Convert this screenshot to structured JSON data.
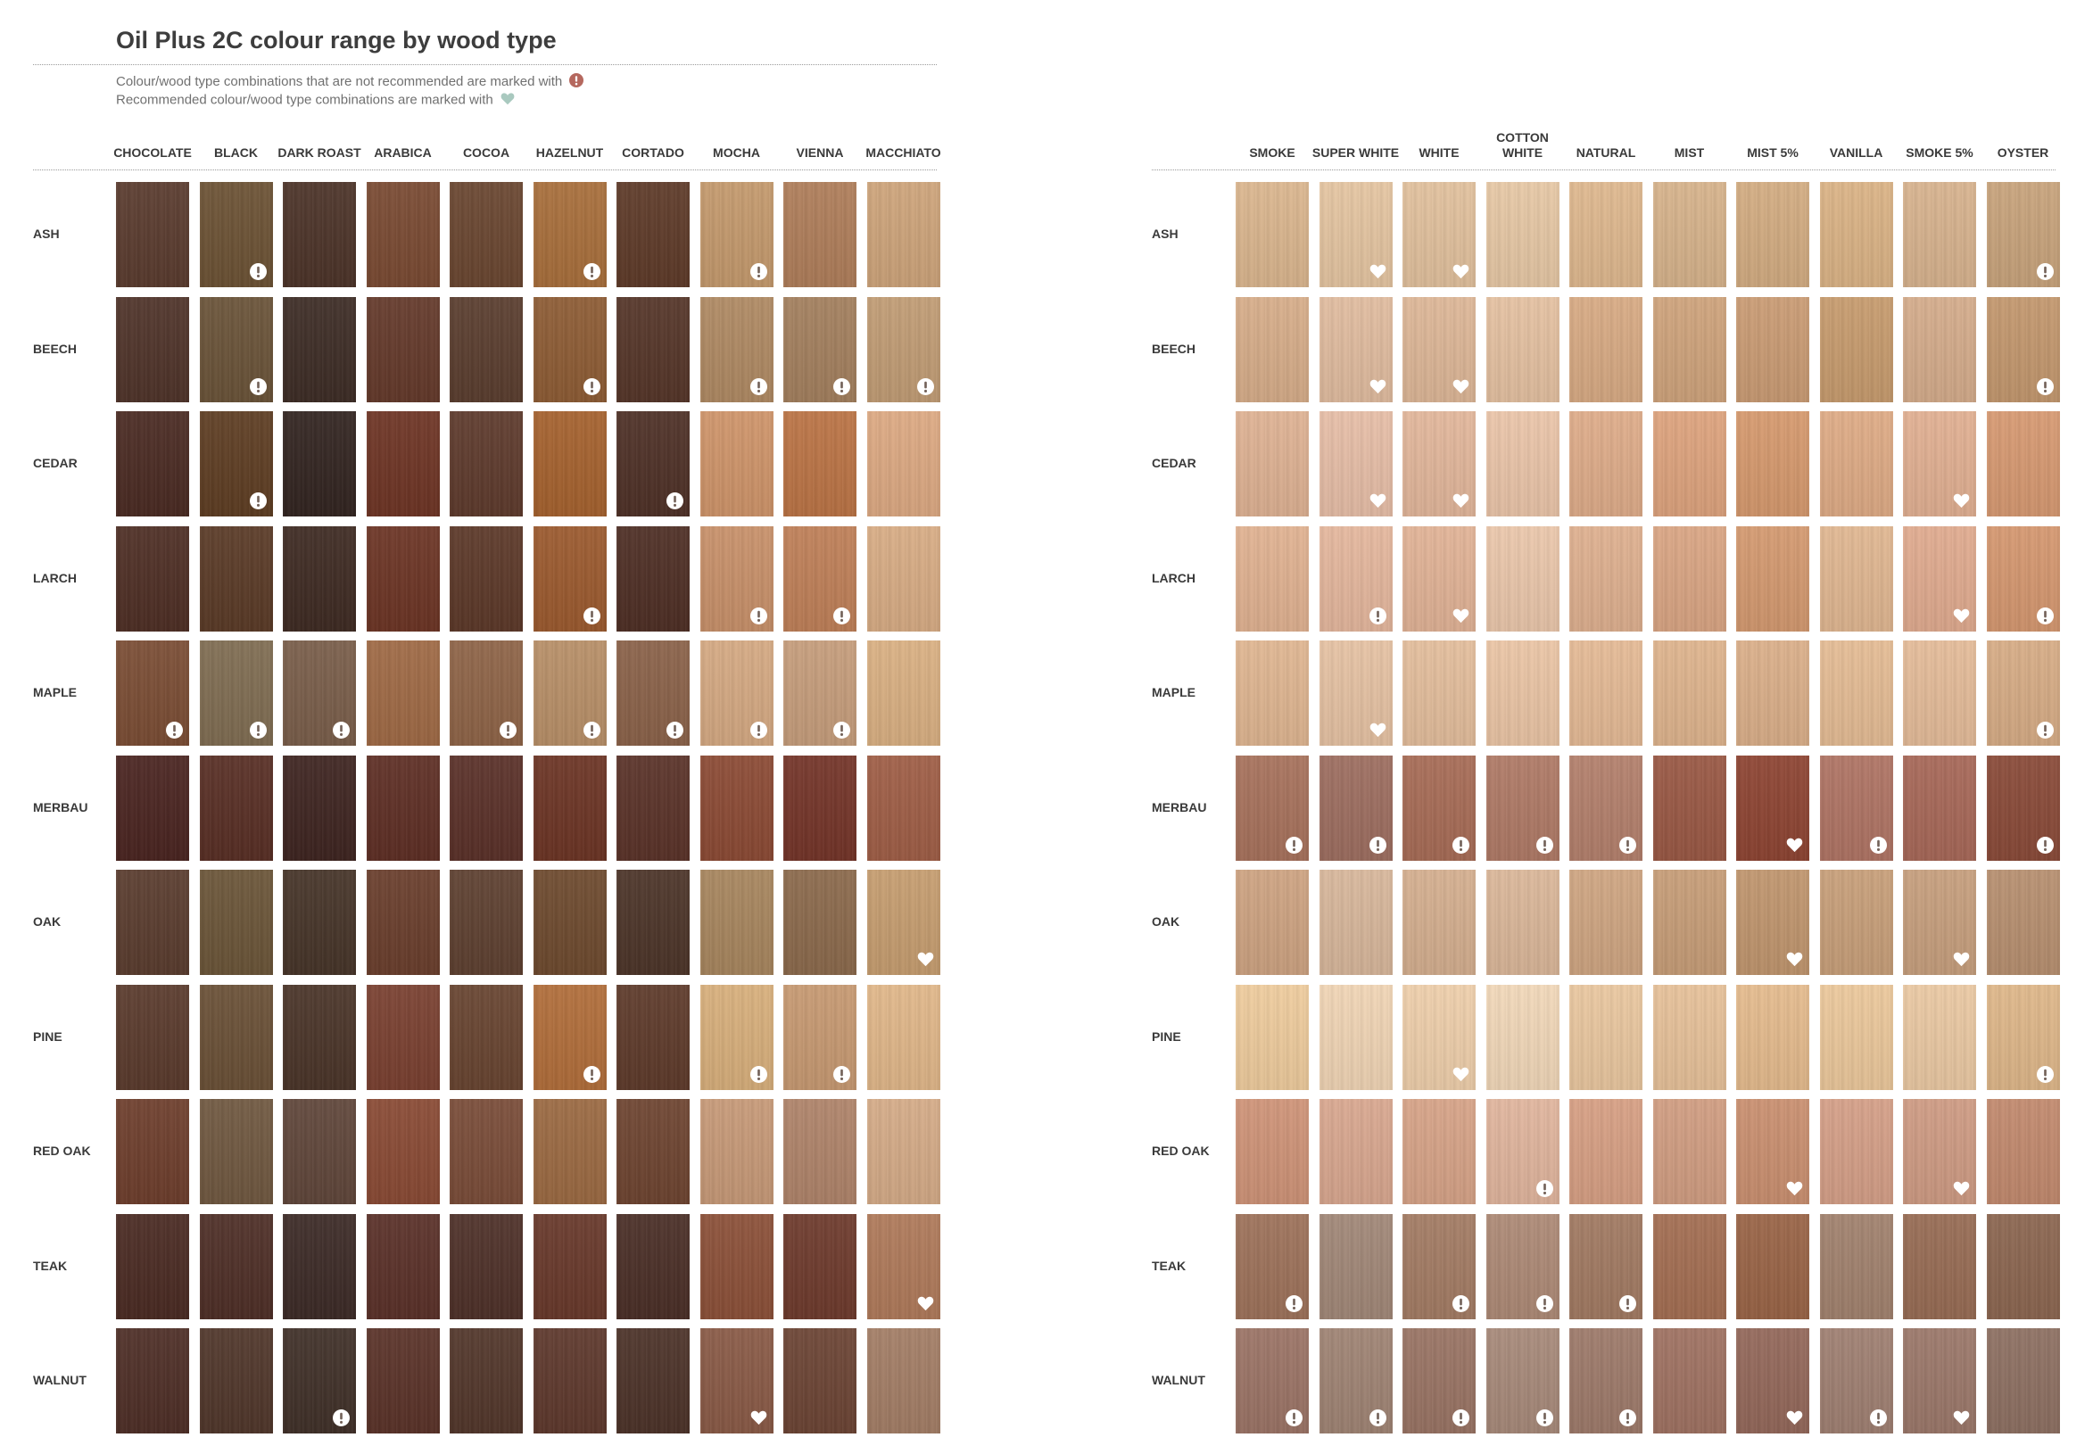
{
  "title": "Oil Plus 2C colour range by wood type",
  "legend": {
    "not_recommended": "Colour/wood type combinations that are not recommended are marked with",
    "recommended": "Recommended colour/wood type combinations are marked with"
  },
  "marks": {
    "not_recommended_color": "#b5685e",
    "recommended_color": "#a9c9bf",
    "swatch_mark_color": "#ffffff"
  },
  "wood_types": [
    "ASH",
    "BEECH",
    "CEDAR",
    "LARCH",
    "MAPLE",
    "MERBAU",
    "OAK",
    "PINE",
    "RED OAK",
    "TEAK",
    "WALNUT"
  ],
  "panels": [
    {
      "colours": [
        "CHOCOLATE",
        "BLACK",
        "DARK ROAST",
        "ARABICA",
        "COCOA",
        "HAZELNUT",
        "CORTADO",
        "MOCHA",
        "VIENNA",
        "MACCHIATO"
      ],
      "swatch_colors": [
        [
          "#5a3b2e",
          "#6c5234",
          "#4c3328",
          "#7a4a32",
          "#6a4630",
          "#a96f3b",
          "#5e3a28",
          "#c59a6d",
          "#b07e5a",
          "#cfa57b"
        ],
        [
          "#4f3329",
          "#6a5338",
          "#3d2c25",
          "#64392a",
          "#5a3d2e",
          "#8e5c34",
          "#553528",
          "#b08a63",
          "#a4805e",
          "#c29d75"
        ],
        [
          "#4a2a22",
          "#5e3d22",
          "#322420",
          "#6e3424",
          "#5e3a2c",
          "#a6622e",
          "#4e3026",
          "#d0956a",
          "#bc7445",
          "#deaa83"
        ],
        [
          "#4e2e24",
          "#5a3a26",
          "#3e2a22",
          "#6c3424",
          "#5c3828",
          "#9c5a2e",
          "#4e2e24",
          "#c9916a",
          "#c08058",
          "#d9ad85"
        ],
        [
          "#7b4d34",
          "#806d52",
          "#7a5e4a",
          "#a06a45",
          "#8f6447",
          "#b99068",
          "#8b6249",
          "#d6aa83",
          "#c79e7c",
          "#dbb183"
        ],
        [
          "#4a2420",
          "#582e24",
          "#3e2420",
          "#5e2e24",
          "#5a3028",
          "#6c3424",
          "#5a3228",
          "#8c4a34",
          "#743428",
          "#a05e46"
        ],
        [
          "#5a3c2e",
          "#6b5538",
          "#463428",
          "#6a3e2c",
          "#5e4030",
          "#6e4a2e",
          "#4c3428",
          "#a8865e",
          "#8c6a4c",
          "#c79e70"
        ],
        [
          "#5a3a2c",
          "#6a5036",
          "#4a3428",
          "#7a4030",
          "#684430",
          "#b26e3a",
          "#5e3a2a",
          "#d9b07c",
          "#c89a72",
          "#e2b88a"
        ],
        [
          "#6e3e2c",
          "#705840",
          "#60463a",
          "#8a4a34",
          "#7a4c38",
          "#9c6a42",
          "#6e4430",
          "#c89a78",
          "#b0846a",
          "#d6ac88"
        ],
        [
          "#4a2a22",
          "#4e2e26",
          "#3c2a26",
          "#5a3028",
          "#4e3028",
          "#68382a",
          "#4a2e26",
          "#8c5038",
          "#6e3a2c",
          "#b07a5a"
        ],
        [
          "#4e2e26",
          "#50362a",
          "#403028",
          "#5a3228",
          "#52362a",
          "#5e382c",
          "#4c3228",
          "#8a5a46",
          "#6c4434",
          "#a47e66"
        ]
      ],
      "flags": [
        [
          "",
          "!",
          "",
          "",
          "",
          "!",
          "",
          "!",
          "",
          ""
        ],
        [
          "",
          "!",
          "",
          "",
          "",
          "!",
          "",
          "!",
          "!",
          "!"
        ],
        [
          "",
          "!",
          "",
          "",
          "",
          "",
          "!",
          "",
          "",
          ""
        ],
        [
          "",
          "",
          "",
          "",
          "",
          "!",
          "",
          "!",
          "!",
          ""
        ],
        [
          "!",
          "!",
          "!",
          "",
          "!",
          "!",
          "!",
          "!",
          "!",
          ""
        ],
        [
          "",
          "",
          "",
          "",
          "",
          "",
          "",
          "",
          "",
          ""
        ],
        [
          "",
          "",
          "",
          "",
          "",
          "",
          "",
          "",
          "",
          "♥"
        ],
        [
          "",
          "",
          "",
          "",
          "",
          "!",
          "",
          "!",
          "!",
          ""
        ],
        [
          "",
          "",
          "",
          "",
          "",
          "",
          "",
          "",
          "",
          ""
        ],
        [
          "",
          "",
          "",
          "",
          "",
          "",
          "",
          "",
          "",
          "♥"
        ],
        [
          "",
          "",
          "!",
          "",
          "",
          "",
          "",
          "♥",
          "",
          ""
        ]
      ]
    },
    {
      "colours": [
        "SMOKE",
        "SUPER WHITE",
        "WHITE",
        "COTTON WHITE",
        "NATURAL",
        "MIST",
        "MIST 5%",
        "VANILLA",
        "SMOKE 5%",
        "OYSTER"
      ],
      "swatch_colors": [
        [
          "#dcb78f",
          "#e6c6a2",
          "#e3c29e",
          "#e8c9a6",
          "#e0b98f",
          "#d8b48c",
          "#d4ad82",
          "#dcb486",
          "#d9b48f",
          "#c9a47c"
        ],
        [
          "#d8ae8a",
          "#e2bda0",
          "#dfb898",
          "#e6c2a2",
          "#d9ab84",
          "#d0a47c",
          "#cb9c74",
          "#c89c6e",
          "#d6ad8c",
          "#c4986e"
        ],
        [
          "#e0b394",
          "#e8bfa8",
          "#e4b89c",
          "#ecc6aa",
          "#e0ad8a",
          "#dfa47e",
          "#d79a6e",
          "#e0ac86",
          "#e3b193",
          "#d89a72"
        ],
        [
          "#e2b392",
          "#e6b89e",
          "#e3b497",
          "#ecc8ac",
          "#e0b190",
          "#dba684",
          "#d59a70",
          "#e2b892",
          "#e2ac90",
          "#d69870"
        ],
        [
          "#e1b792",
          "#e7c3a4",
          "#e5bf9d",
          "#ecc6a6",
          "#e6bb96",
          "#e0b58e",
          "#dcb08a",
          "#e6bd95",
          "#e6bd9a",
          "#d8ad86"
        ],
        [
          "#a8725c",
          "#9e6e60",
          "#a86c56",
          "#b07a66",
          "#b4806c",
          "#9a5844",
          "#8e4432",
          "#b07464",
          "#a86858",
          "#8a4a38"
        ],
        [
          "#cfa482",
          "#d9b89c",
          "#d6b090",
          "#dcb89a",
          "#d0a682",
          "#c89e78",
          "#c1966e",
          "#c9a07a",
          "#c8a07e",
          "#b89070"
        ],
        [
          "#f0cd9e",
          "#f2d6b6",
          "#f0d0ac",
          "#f3d9ba",
          "#ebc8a0",
          "#e8c29a",
          "#e6bc8e",
          "#edc99c",
          "#eccaa4",
          "#e0b88a"
        ],
        [
          "#d09478",
          "#daa890",
          "#d8a488",
          "#e2b69e",
          "#d8a084",
          "#d29e82",
          "#cb9070",
          "#d6a088",
          "#d09c84",
          "#c38a6e"
        ],
        [
          "#9e725a",
          "#a28878",
          "#a47c64",
          "#ae8a76",
          "#a27a62",
          "#a46e52",
          "#9a6446",
          "#a2826e",
          "#986c54",
          "#8c6650"
        ],
        [
          "#9c7466",
          "#a08474",
          "#9a7464",
          "#a88a7a",
          "#9e7a6a",
          "#a07262",
          "#94685a",
          "#a08072",
          "#9c786a",
          "#8e7062"
        ]
      ],
      "flags": [
        [
          "",
          "♥",
          "♥",
          "",
          "",
          "",
          "",
          "",
          "",
          "!"
        ],
        [
          "",
          "♥",
          "♥",
          "",
          "",
          "",
          "",
          "",
          "",
          "!"
        ],
        [
          "",
          "♥",
          "♥",
          "",
          "",
          "",
          "",
          "",
          "♥",
          ""
        ],
        [
          "",
          "!",
          "♥",
          "",
          "",
          "",
          "",
          "",
          "♥",
          "!"
        ],
        [
          "",
          "♥",
          "",
          "",
          "",
          "",
          "",
          "",
          "",
          "!"
        ],
        [
          "!",
          "!",
          "!",
          "!",
          "!",
          "",
          "♥",
          "!",
          "",
          "!"
        ],
        [
          "",
          "",
          "",
          "",
          "",
          "",
          "♥",
          "",
          "♥",
          ""
        ],
        [
          "",
          "",
          "♥",
          "",
          "",
          "",
          "",
          "",
          "",
          "!"
        ],
        [
          "",
          "",
          "",
          "!",
          "",
          "",
          "♥",
          "",
          "♥",
          ""
        ],
        [
          "!",
          "",
          "!",
          "!",
          "!",
          "",
          "",
          "",
          "",
          ""
        ],
        [
          "!",
          "!",
          "!",
          "!",
          "!",
          "",
          "♥",
          "!",
          "♥",
          ""
        ]
      ]
    }
  ]
}
